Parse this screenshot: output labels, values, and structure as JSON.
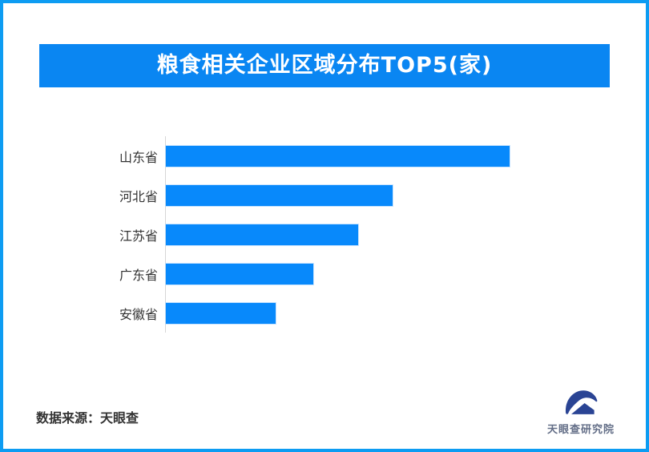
{
  "page": {
    "frame_color": "#0d9cf2",
    "background": "#ffffff"
  },
  "header": {
    "title": "粮食相关企业区域分布TOP5(家)",
    "banner_color": "#0a86f2",
    "text_color": "#ffffff"
  },
  "chart_data": {
    "type": "bar",
    "orientation": "horizontal",
    "title": "粮食相关企业区域分布TOP5(家)",
    "categories": [
      "山东省",
      "河北省",
      "江苏省",
      "广东省",
      "安徽省"
    ],
    "values": [
      100,
      66,
      56,
      43,
      32
    ],
    "values_note": "no numeric axis, ticks or data labels are shown; values are relative bar lengths as % of the longest bar (measured 429/282/241/186/138 px)",
    "xlabel": "",
    "ylabel": "",
    "grid": false,
    "legend": false,
    "bar_color": "#0889fb",
    "axis_line_color": "#d6d6d6",
    "label_color": "#333333"
  },
  "footer": {
    "source": "数据来源：天眼查",
    "brand": "天眼查研究院",
    "brand_text_color": "#636e87",
    "logo_color": "#2a4494"
  }
}
